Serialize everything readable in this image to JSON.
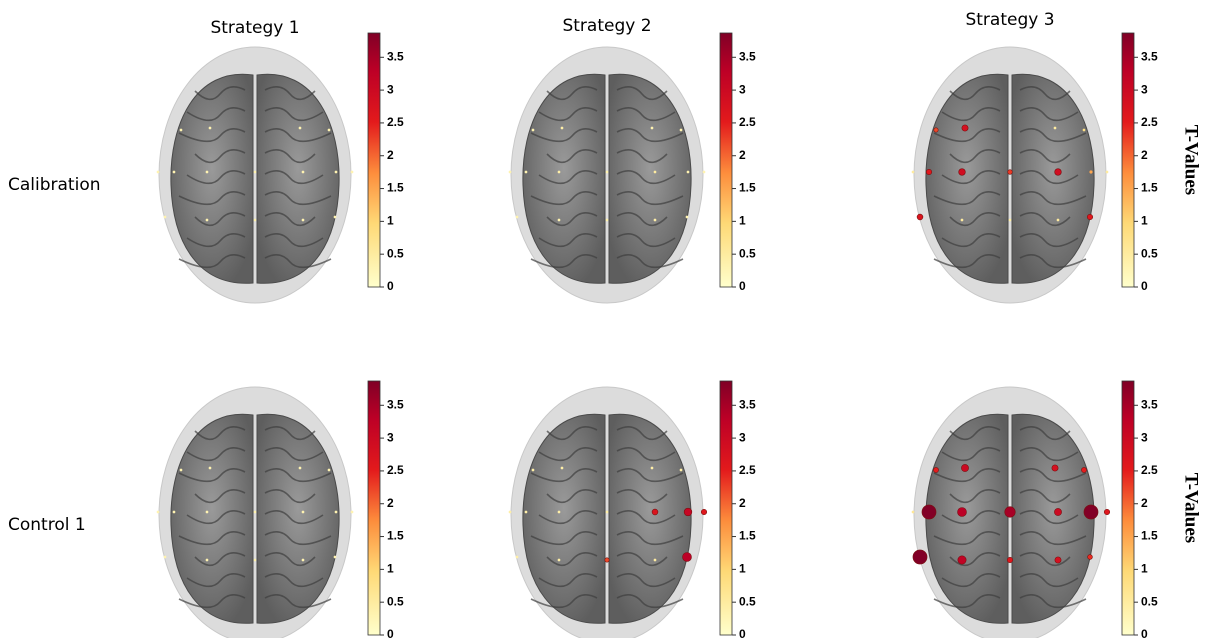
{
  "chart_data": {
    "type": "topoplot",
    "columns": [
      "Strategy 1",
      "Strategy 2",
      "Strategy 3"
    ],
    "rows": [
      "Calibration",
      "Control 1"
    ],
    "colorbar": {
      "label": "T-Values",
      "lim": [
        0,
        3.87
      ],
      "ticks": [
        0,
        0.5,
        1,
        1.5,
        2,
        2.5,
        3,
        3.5
      ]
    },
    "panels": [
      [
        {
          "values": [
            0.3,
            0.3,
            0.3,
            0.3,
            0.3,
            0.3,
            0.3,
            0.3,
            0.3,
            0.3,
            0.3,
            0.3,
            0.3,
            0.3,
            0.3,
            0.3
          ]
        },
        {
          "values": [
            0.4,
            0.3,
            0.4,
            0.3,
            0.5,
            0.3,
            0.3,
            0.4,
            0.3,
            0.3,
            0.3,
            0.3,
            0.3,
            0.3,
            0.3,
            0.3
          ]
        },
        {
          "values": [
            2.8,
            0.5,
            2.9,
            2.3,
            2.9,
            0.5,
            0.4,
            0.5,
            2.6,
            1.5,
            2.7,
            2.6,
            2.2,
            0.8,
            0.5,
            0.5
          ]
        }
      ],
      [
        {
          "values": [
            0.3,
            0.3,
            0.3,
            0.3,
            0.3,
            0.3,
            0.3,
            0.3,
            0.3,
            0.3,
            0.3,
            0.3,
            0.3,
            0.3,
            0.3,
            0.3
          ]
        },
        {
          "values": [
            0.4,
            0.4,
            0.4,
            0.4,
            2.7,
            0.4,
            2.2,
            0.5,
            0.4,
            3.1,
            0.4,
            3.3,
            0.4,
            0.4,
            0.4,
            2.6
          ]
        },
        {
          "values": [
            3.0,
            2.8,
            3.3,
            3.5,
            3.0,
            3.2,
            2.6,
            2.8,
            3.85,
            3.85,
            3.85,
            2.4,
            2.5,
            2.5,
            0.6,
            2.6
          ]
        }
      ]
    ]
  }
}
